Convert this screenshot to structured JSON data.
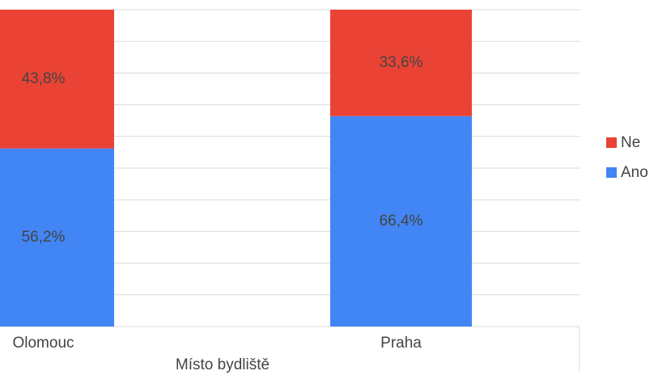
{
  "chart_data": {
    "type": "stacked_bar",
    "categories": [
      "Olomouc",
      "Praha"
    ],
    "x_label": "Místo bydliště",
    "series": [
      {
        "name": "Ano",
        "color": "#4285f4",
        "values": [
          56.2,
          66.4
        ],
        "value_labels": [
          "56,2%",
          "66,4%"
        ]
      },
      {
        "name": "Ne",
        "color": "#ea4335",
        "values": [
          43.8,
          33.6
        ],
        "value_labels": [
          "43,8%",
          "33,6%"
        ]
      }
    ],
    "ylim": [
      0,
      100
    ],
    "yticks": [
      0,
      10,
      20,
      30,
      40,
      50,
      60,
      70,
      80,
      90,
      100
    ],
    "grid": true,
    "legend": "right"
  }
}
